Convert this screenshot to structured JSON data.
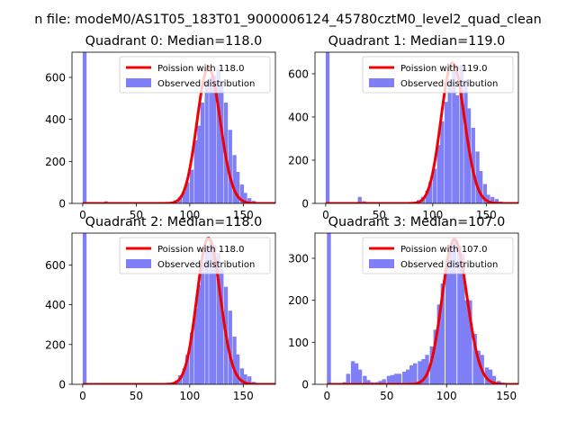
{
  "figure": {
    "suptitle": "n file: modeM0/AS1T05_183T01_9000006124_45780cztM0_level2_quad_clean"
  },
  "legend_labels": {
    "line": "Poission with",
    "hist": "Observed distribution"
  },
  "colors": {
    "hist": "#7f7ff7",
    "curve": "#f00000",
    "axis": "#000000"
  },
  "chart_data": [
    {
      "type": "bar",
      "title": "Quadrant 0: Median=118.0",
      "median": 118.0,
      "legend": [
        "Poission with 118.0",
        "Observed distribution"
      ],
      "legend_placement": "top-right",
      "xlim": [
        -10,
        180
      ],
      "ylim": [
        0,
        720
      ],
      "xticks": [
        0,
        50,
        100,
        150
      ],
      "yticks": [
        0,
        200,
        400,
        600
      ],
      "bin_width": 3.6,
      "hist": {
        "x": [
          0,
          20,
          50,
          70,
          85,
          89,
          93,
          96,
          100,
          104,
          107,
          110,
          114,
          118,
          121,
          125,
          128,
          132,
          136,
          140,
          143,
          147,
          150,
          154,
          158,
          162,
          166
        ],
        "values": [
          720,
          10,
          3,
          5,
          15,
          30,
          55,
          100,
          160,
          300,
          370,
          480,
          580,
          600,
          610,
          640,
          570,
          480,
          350,
          230,
          150,
          90,
          50,
          25,
          12,
          6,
          3
        ]
      },
      "poisson": {
        "lambda": 118.0,
        "peak": 645
      }
    },
    {
      "type": "bar",
      "title": "Quadrant 1: Median=119.0",
      "median": 119.0,
      "legend": [
        "Poission with 119.0",
        "Observed distribution"
      ],
      "legend_placement": "top-right",
      "xlim": [
        -10,
        180
      ],
      "ylim": [
        0,
        700
      ],
      "xticks": [
        0,
        50,
        100,
        150
      ],
      "yticks": [
        0,
        200,
        400,
        600
      ],
      "bin_width": 3.6,
      "hist": {
        "x": [
          0,
          30,
          34,
          70,
          85,
          89,
          93,
          96,
          100,
          104,
          107,
          111,
          114,
          118,
          121,
          125,
          129,
          132,
          136,
          140,
          143,
          147,
          150,
          154,
          158,
          162,
          166
        ],
        "values": [
          700,
          30,
          10,
          5,
          15,
          30,
          60,
          100,
          160,
          270,
          380,
          470,
          560,
          610,
          500,
          640,
          570,
          440,
          350,
          240,
          150,
          90,
          40,
          30,
          20,
          8,
          3
        ]
      },
      "poisson": {
        "lambda": 119.0,
        "peak": 650
      }
    },
    {
      "type": "bar",
      "title": "Quadrant 2: Median=118.0",
      "median": 118.0,
      "legend": [
        "Poission with 118.0",
        "Observed distribution"
      ],
      "legend_placement": "top-right",
      "xlim": [
        -10,
        180
      ],
      "ylim": [
        0,
        760
      ],
      "xticks": [
        0,
        50,
        100,
        150
      ],
      "yticks": [
        0,
        200,
        400,
        600
      ],
      "bin_width": 3.6,
      "hist": {
        "x": [
          0,
          30,
          60,
          82,
          86,
          89,
          93,
          96,
          100,
          104,
          107,
          110,
          114,
          118,
          121,
          125,
          128,
          132,
          136,
          140,
          143,
          147,
          150,
          154,
          158
        ],
        "values": [
          760,
          3,
          2,
          8,
          20,
          45,
          80,
          150,
          260,
          380,
          500,
          600,
          690,
          720,
          700,
          660,
          580,
          490,
          370,
          240,
          150,
          80,
          50,
          40,
          12
        ]
      },
      "poisson": {
        "lambda": 118.0,
        "peak": 735
      }
    },
    {
      "type": "bar",
      "title": "Quadrant 3: Median=107.0",
      "median": 107.0,
      "legend": [
        "Poission with 107.0",
        "Observed distribution"
      ],
      "legend_placement": "top-right",
      "xlim": [
        -10,
        160
      ],
      "ylim": [
        0,
        360
      ],
      "xticks": [
        0,
        50,
        100,
        150
      ],
      "yticks": [
        0,
        100,
        200,
        300
      ],
      "bin_width": 3.3,
      "hist": {
        "x": [
          0,
          13,
          16,
          20,
          23,
          26,
          30,
          33,
          36,
          40,
          43,
          46,
          50,
          53,
          56,
          59,
          63,
          66,
          69,
          72,
          76,
          79,
          82,
          86,
          89,
          92,
          95,
          99,
          102,
          105,
          109,
          112,
          115,
          118,
          122,
          125,
          128,
          132,
          135,
          138,
          142,
          145
        ],
        "values": [
          360,
          5,
          25,
          55,
          50,
          35,
          20,
          10,
          5,
          5,
          8,
          12,
          20,
          22,
          25,
          25,
          30,
          35,
          45,
          50,
          55,
          60,
          70,
          90,
          130,
          190,
          240,
          300,
          330,
          345,
          330,
          310,
          200,
          200,
          120,
          80,
          70,
          40,
          35,
          20,
          8,
          4
        ]
      },
      "poisson": {
        "lambda": 107.0,
        "peak": 345
      }
    }
  ]
}
